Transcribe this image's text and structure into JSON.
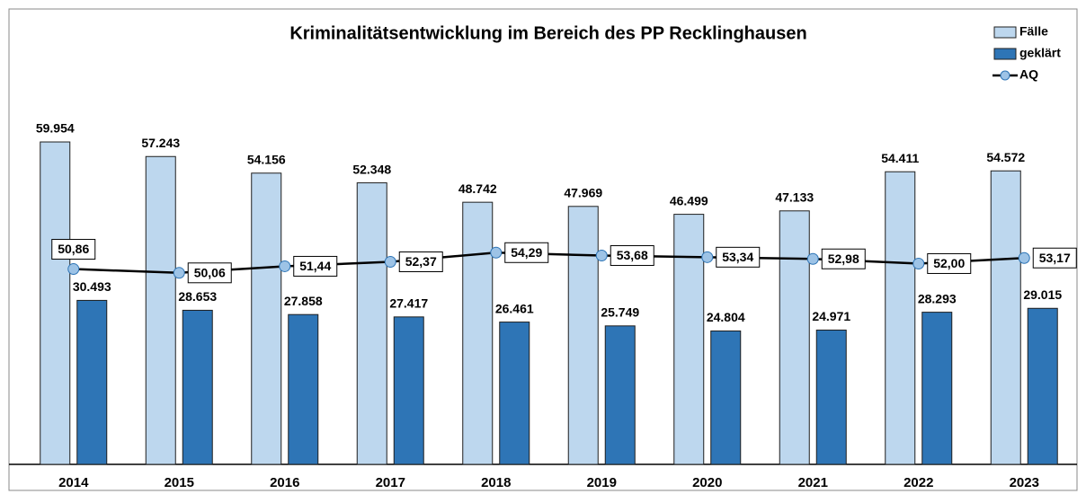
{
  "chart_data": {
    "type": "bar",
    "title": "Kriminalitätsentwicklung im Bereich des PP Recklinghausen",
    "categories": [
      "2014",
      "2015",
      "2016",
      "2017",
      "2018",
      "2019",
      "2020",
      "2021",
      "2022",
      "2023"
    ],
    "series": [
      {
        "name": "Fälle",
        "color": "#bdd7ee",
        "values": [
          59954,
          57243,
          54156,
          52348,
          48742,
          47969,
          46499,
          47133,
          54411,
          54572
        ],
        "value_labels": [
          "59.954",
          "57.243",
          "54.156",
          "52.348",
          "48.742",
          "47.969",
          "46.499",
          "47.133",
          "54.411",
          "54.572"
        ]
      },
      {
        "name": "geklärt",
        "color": "#2e75b6",
        "values": [
          30493,
          28653,
          27858,
          27417,
          26461,
          25749,
          24804,
          24971,
          28293,
          29015
        ],
        "value_labels": [
          "30.493",
          "28.653",
          "27.858",
          "27.417",
          "26.461",
          "25.749",
          "24.804",
          "24.971",
          "28.293",
          "29.015"
        ]
      },
      {
        "name": "AQ",
        "type": "line",
        "axis": "y2",
        "color": "#9dc3e6",
        "values": [
          50.86,
          50.06,
          51.44,
          52.37,
          54.29,
          53.68,
          53.34,
          52.98,
          52.0,
          53.17
        ],
        "value_labels": [
          "50,86",
          "50,06",
          "51,44",
          "52,37",
          "54,29",
          "53,68",
          "53,34",
          "52,98",
          "52,00",
          "53,17"
        ]
      }
    ],
    "ylim": [
      0,
      80000
    ],
    "y2lim": [
      10,
      100
    ],
    "legend": "top-right"
  }
}
